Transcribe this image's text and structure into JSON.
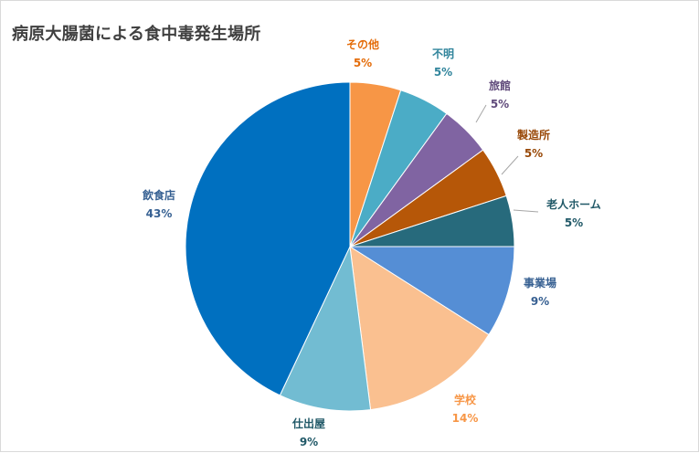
{
  "chart_data": {
    "type": "pie",
    "title": "病原大腸菌による食中毒発生場所",
    "start_angle_deg": 0,
    "direction": "clockwise",
    "data_labels": "outside",
    "slices": [
      {
        "label": "その他",
        "value": 5,
        "display": "5%",
        "color": "#f79646",
        "label_color": "#e46c0a"
      },
      {
        "label": "不明",
        "value": 5,
        "display": "5%",
        "color": "#4bacc6",
        "label_color": "#31859c"
      },
      {
        "label": "旅館",
        "value": 5,
        "display": "5%",
        "color": "#8064a2",
        "label_color": "#604a7b"
      },
      {
        "label": "製造所",
        "value": 5,
        "display": "5%",
        "color": "#b65708",
        "label_color": "#984807"
      },
      {
        "label": "老人ホーム",
        "value": 5,
        "display": "5%",
        "color": "#276a7c",
        "label_color": "#215968"
      },
      {
        "label": "事業場",
        "value": 9,
        "display": "9%",
        "color": "#558ed5",
        "label_color": "#376092"
      },
      {
        "label": "学校",
        "value": 14,
        "display": "14%",
        "color": "#fac090",
        "label_color": "#f79646"
      },
      {
        "label": "仕出屋",
        "value": 9,
        "display": "9%",
        "color": "#72bcd2",
        "label_color": "#215968"
      },
      {
        "label": "飲食店",
        "value": 43,
        "display": "43%",
        "color": "#0070c0",
        "label_color": "#366092"
      }
    ]
  }
}
